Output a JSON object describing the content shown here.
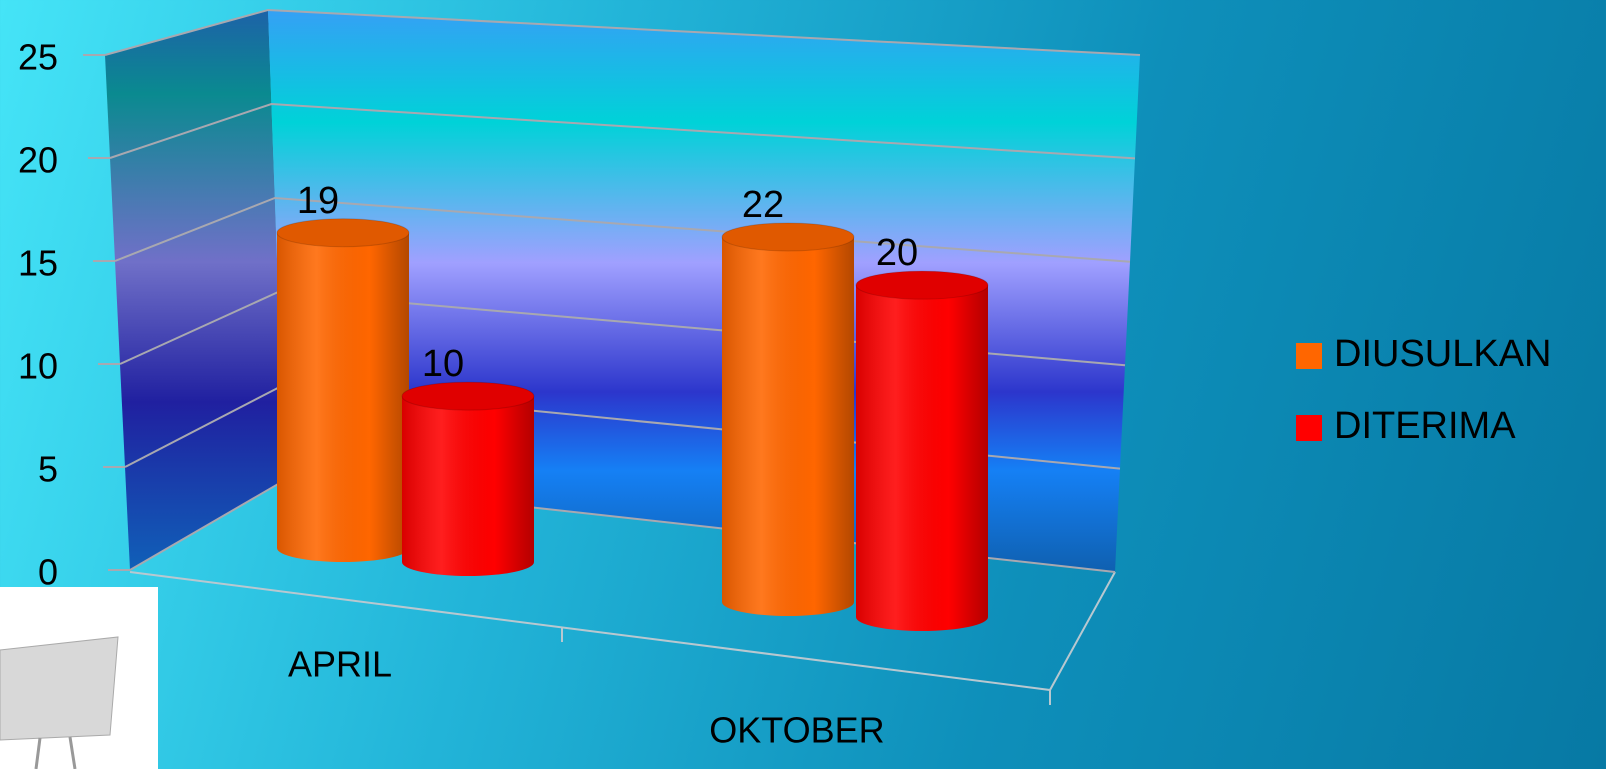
{
  "chart_data": {
    "type": "bar",
    "categories": [
      "APRIL",
      "OKTOBER"
    ],
    "series": [
      {
        "name": "DIUSULKAN",
        "color": "#ff6600",
        "values": [
          19,
          22
        ]
      },
      {
        "name": "DITERIMA",
        "color": "#ff0000",
        "values": [
          10,
          20
        ]
      }
    ],
    "ylim": [
      0,
      25
    ],
    "yticks": [
      0,
      5,
      10,
      15,
      20,
      25
    ],
    "grid": true,
    "legend": "right"
  }
}
